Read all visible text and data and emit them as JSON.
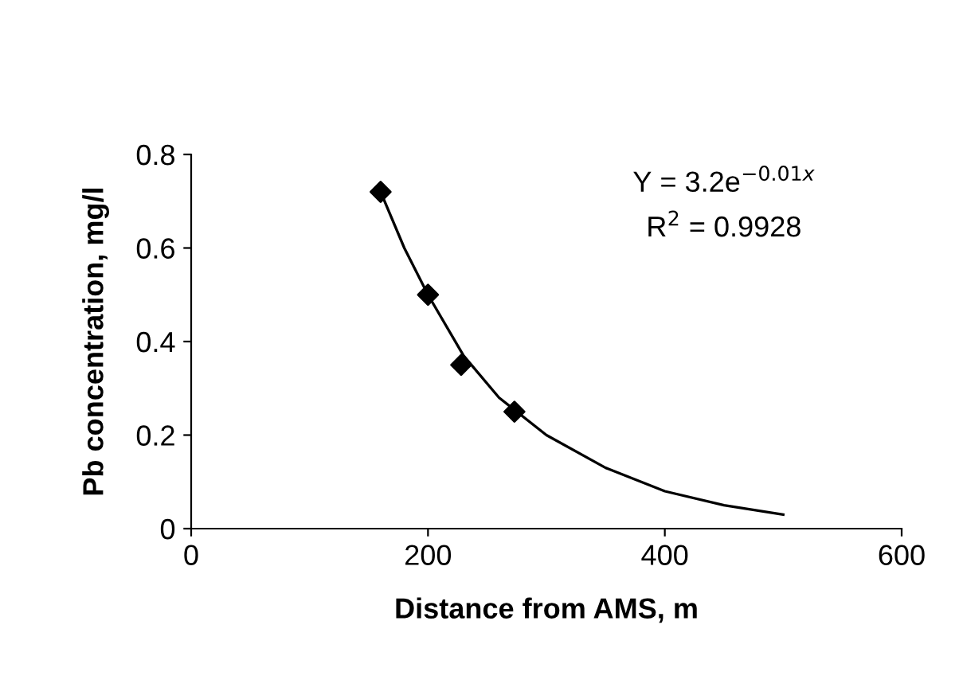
{
  "chart_data": {
    "type": "scatter",
    "xlabel": "Distance from AMS, m",
    "ylabel": "Pb concentration, mg/l",
    "xlim": [
      0,
      600
    ],
    "xticks": [
      0,
      200,
      400,
      600
    ],
    "ylim": [
      0,
      0.8
    ],
    "yticks": [
      0,
      0.2,
      0.4,
      0.6,
      0.8
    ],
    "grid": false,
    "legend": false,
    "marker": "diamond",
    "series": [
      {
        "color": "#000000",
        "x": [
          160,
          200,
          228,
          273
        ],
        "values": [
          0.72,
          0.5,
          0.35,
          0.25
        ]
      },
      {
        "type": "line",
        "color": "#000000",
        "marker": "none",
        "line_style": "solid",
        "x": [
          160,
          180,
          200,
          230,
          260,
          300,
          350,
          400,
          450,
          500
        ],
        "values": [
          0.72,
          0.6,
          0.5,
          0.37,
          0.28,
          0.2,
          0.13,
          0.08,
          0.05,
          0.03
        ]
      }
    ],
    "annotations": [
      "Y = 3.2e$^{−0.01x}$",
      "R$^{2}$ = 0.9928"
    ]
  }
}
